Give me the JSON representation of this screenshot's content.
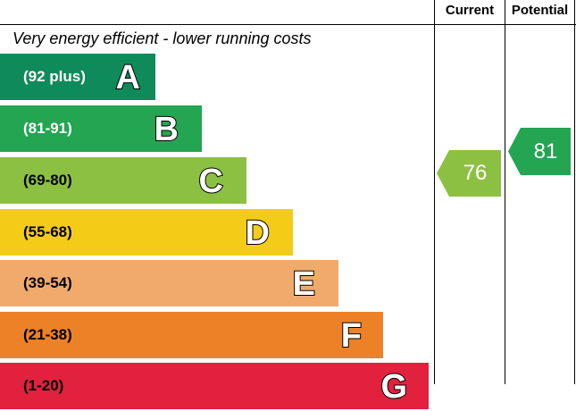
{
  "header": {
    "current_label": "Current",
    "potential_label": "Potential"
  },
  "caption": "Very energy efficient - lower running costs",
  "chart_data": {
    "type": "bar",
    "categories": [
      "A",
      "B",
      "C",
      "D",
      "E",
      "F",
      "G"
    ],
    "series": [
      {
        "values": [
          "(92 plus)",
          "(81-91)",
          "(69-80)",
          "(55-68)",
          "(39-54)",
          "(21-38)",
          "(1-20)"
        ]
      }
    ],
    "colors": [
      "#0f8a5a",
      "#23a552",
      "#8cc043",
      "#f4cc17",
      "#f0aa6b",
      "#ec8128",
      "#e1213d"
    ],
    "range_text_colors": [
      "#ffffff",
      "#ffffff",
      "#000000",
      "#000000",
      "#000000",
      "#000000",
      "#000000"
    ],
    "current": {
      "value": "76",
      "band": "C",
      "color": "#8cc043"
    },
    "potential": {
      "value": "81",
      "band": "B",
      "color": "#23a552"
    }
  }
}
